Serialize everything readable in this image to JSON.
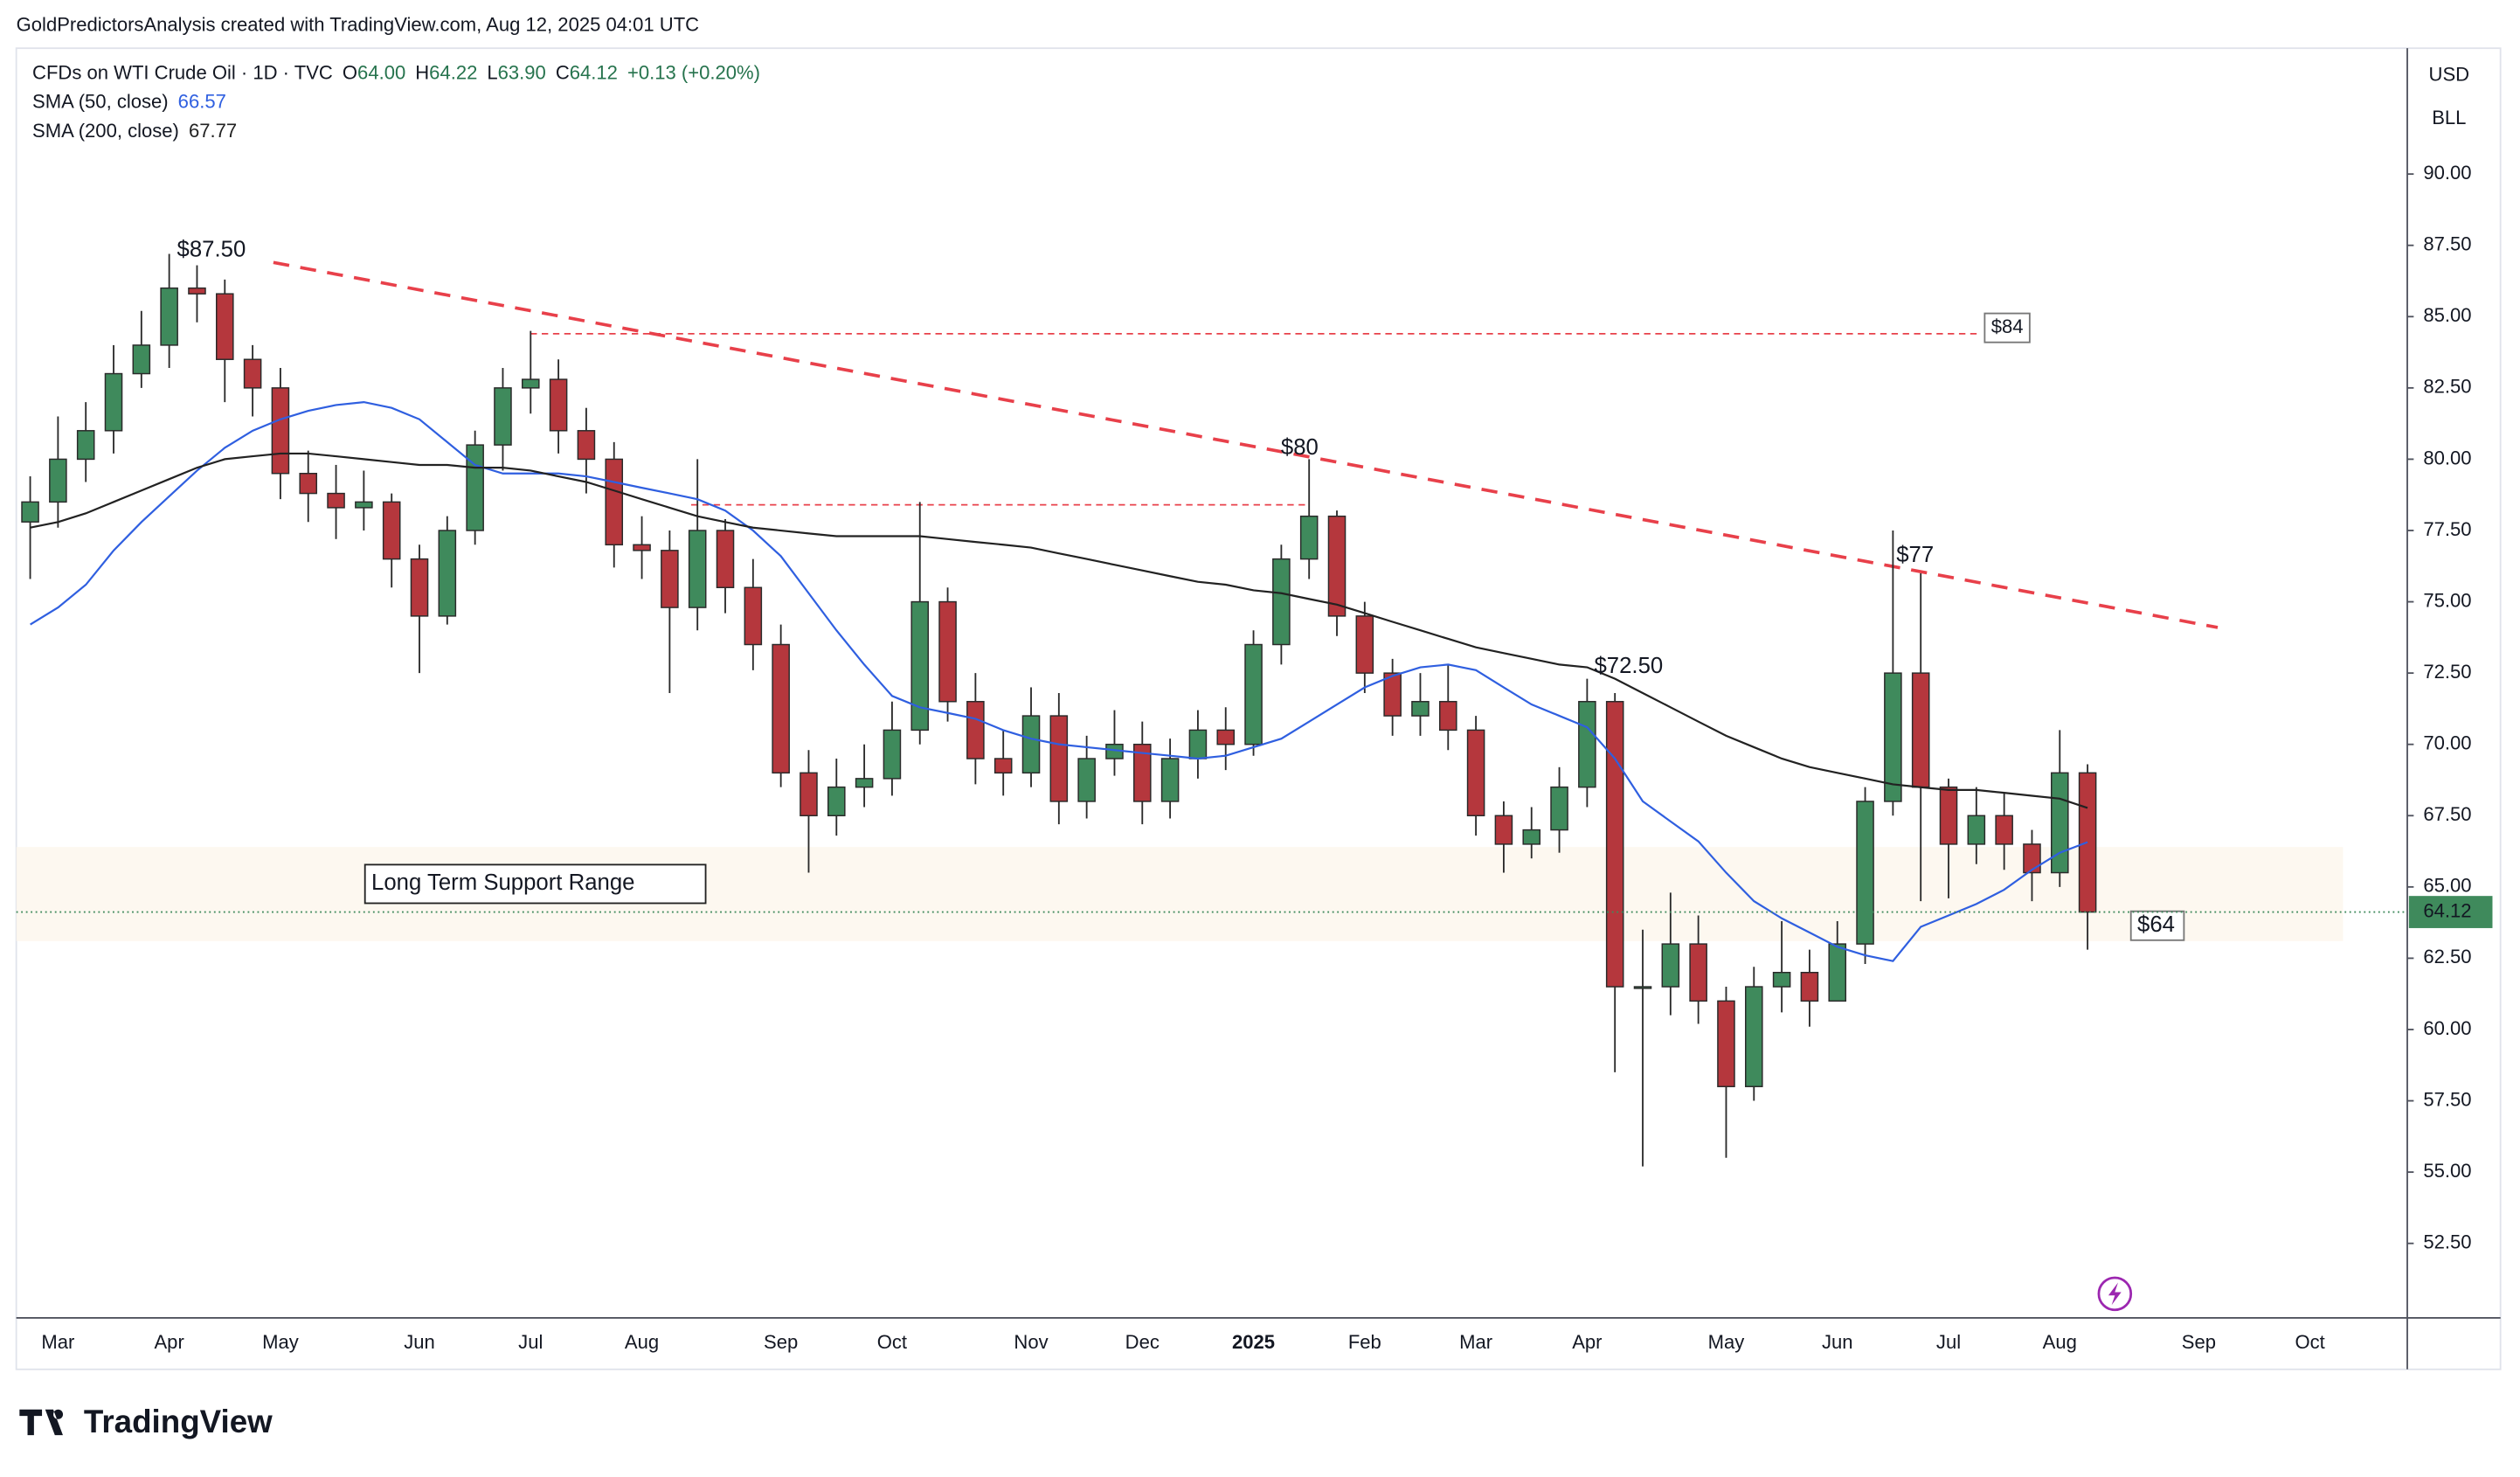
{
  "header": {
    "credit": "GoldPredictorsAnalysis created with TradingView.com, Aug 12, 2025 04:01 UTC",
    "symbol": "CFDs on WTI Crude Oil · 1D · TVC",
    "ohlc": [
      [
        "O",
        "64.00"
      ],
      [
        "H",
        "64.22"
      ],
      [
        "L",
        "63.90"
      ],
      [
        "C",
        "64.12"
      ]
    ],
    "change": "+0.13 (+0.20%)"
  },
  "currency": "USD",
  "unit": "BLL",
  "logo": "TradingView",
  "chart_data": {
    "type": "candlestick",
    "categories": [
      null,
      "Mar",
      null,
      null,
      null,
      "Apr",
      null,
      null,
      null,
      "May",
      null,
      null,
      null,
      null,
      "Jun",
      null,
      null,
      null,
      "Jul",
      null,
      null,
      null,
      "Aug",
      null,
      null,
      null,
      null,
      "Sep",
      null,
      null,
      null,
      "Oct",
      null,
      null,
      null,
      null,
      "Nov",
      null,
      null,
      null,
      "Dec",
      null,
      null,
      null,
      "2025",
      null,
      null,
      null,
      "Feb",
      null,
      null,
      null,
      "Mar",
      null,
      null,
      null,
      "Apr",
      null,
      null,
      null,
      null,
      "May",
      null,
      null,
      null,
      "Jun",
      null,
      null,
      null,
      "Jul",
      null,
      null,
      null,
      "Aug",
      null,
      null,
      null,
      null,
      "Sep",
      null,
      null,
      null,
      "Oct",
      null,
      null,
      null
    ],
    "open": [
      77.8,
      78.5,
      80.0,
      81.0,
      83.0,
      84.0,
      86.0,
      85.8,
      83.5,
      82.5,
      79.5,
      78.8,
      78.3,
      78.5,
      76.5,
      74.5,
      77.5,
      80.5,
      82.5,
      82.8,
      81.0,
      80.0,
      77.0,
      76.8,
      74.8,
      77.5,
      75.5,
      73.5,
      69.0,
      67.5,
      68.5,
      68.8,
      70.5,
      75.0,
      71.5,
      69.5,
      69.0,
      71.0,
      68.0,
      69.5,
      70.0,
      68.0,
      69.5,
      70.5,
      70.0,
      73.5,
      76.5,
      78.0,
      74.5,
      72.5,
      71.0,
      71.5,
      70.5,
      67.5,
      66.5,
      67.0,
      68.5,
      71.5,
      61.5,
      61.5,
      63.0,
      61.0,
      58.0,
      61.5,
      62.0,
      61.0,
      63.0,
      68.0,
      72.5,
      68.5,
      66.5,
      67.5,
      66.5,
      65.5,
      69.0,
      null,
      null,
      null,
      null,
      null,
      null,
      null,
      null,
      null,
      null,
      null
    ],
    "high": [
      79.4,
      81.5,
      82.0,
      84.0,
      85.2,
      87.2,
      86.8,
      86.3,
      84.0,
      83.2,
      80.3,
      79.8,
      79.6,
      78.8,
      77.0,
      78.0,
      81.0,
      83.2,
      84.5,
      83.5,
      81.8,
      80.6,
      78.0,
      77.5,
      80.0,
      77.9,
      76.5,
      74.2,
      69.8,
      69.5,
      70.0,
      71.5,
      78.5,
      75.5,
      72.5,
      70.5,
      72.0,
      71.8,
      70.3,
      71.2,
      70.8,
      70.2,
      71.2,
      71.3,
      74.0,
      77.0,
      80.0,
      78.2,
      75.0,
      73.0,
      72.5,
      72.8,
      71.0,
      68.0,
      67.8,
      69.2,
      72.3,
      71.8,
      63.5,
      64.8,
      64.0,
      61.5,
      62.2,
      63.8,
      62.8,
      63.8,
      68.5,
      77.5,
      76.0,
      68.8,
      68.5,
      68.3,
      67.0,
      70.5,
      69.3,
      null,
      null,
      null,
      null,
      null,
      null,
      null,
      null,
      null,
      null,
      null
    ],
    "low": [
      75.8,
      77.6,
      79.2,
      80.2,
      82.5,
      83.2,
      84.8,
      82.0,
      81.5,
      78.6,
      77.8,
      77.2,
      77.5,
      75.5,
      72.5,
      74.2,
      77.0,
      79.6,
      81.6,
      80.2,
      78.8,
      76.2,
      75.8,
      71.8,
      74.0,
      74.6,
      72.6,
      68.5,
      65.5,
      66.8,
      67.8,
      68.2,
      70.0,
      70.8,
      68.6,
      68.2,
      68.5,
      67.2,
      67.4,
      68.9,
      67.2,
      67.4,
      68.8,
      69.1,
      69.6,
      72.8,
      75.8,
      73.8,
      71.8,
      70.3,
      70.3,
      69.8,
      66.8,
      65.5,
      66.0,
      66.2,
      67.8,
      58.5,
      55.2,
      60.5,
      60.2,
      55.5,
      57.5,
      60.6,
      60.1,
      61.0,
      62.3,
      67.5,
      64.5,
      64.6,
      65.8,
      65.6,
      64.5,
      65.0,
      62.8,
      null,
      null,
      null,
      null,
      null,
      null,
      null,
      null,
      null,
      null,
      null
    ],
    "close": [
      78.5,
      80.0,
      81.0,
      83.0,
      84.0,
      86.0,
      85.8,
      83.5,
      82.5,
      79.5,
      78.8,
      78.3,
      78.5,
      76.5,
      74.5,
      77.5,
      80.5,
      82.5,
      82.8,
      81.0,
      80.0,
      77.0,
      76.8,
      74.8,
      77.5,
      75.5,
      73.5,
      69.0,
      67.5,
      68.5,
      68.8,
      70.5,
      75.0,
      71.5,
      69.5,
      69.0,
      71.0,
      68.0,
      69.5,
      70.0,
      68.0,
      69.5,
      70.5,
      70.0,
      73.5,
      76.5,
      78.0,
      74.5,
      72.5,
      71.0,
      71.5,
      70.5,
      67.5,
      66.5,
      67.0,
      68.5,
      71.5,
      61.5,
      61.5,
      63.0,
      61.0,
      58.0,
      61.5,
      62.0,
      61.0,
      63.0,
      68.0,
      72.5,
      68.5,
      66.5,
      67.5,
      66.5,
      65.5,
      69.0,
      64.12,
      null,
      null,
      null,
      null,
      null,
      null,
      null,
      null,
      null,
      null,
      null
    ],
    "up_color": "#3f8a5c",
    "down_color": "#b5373d",
    "series": [
      {
        "name": "SMA (50, close)",
        "color": "#2f5fe0",
        "values": [
          74.2,
          74.8,
          75.6,
          76.8,
          77.8,
          78.7,
          79.6,
          80.4,
          81.0,
          81.4,
          81.7,
          81.9,
          82.0,
          81.8,
          81.4,
          80.6,
          79.8,
          79.5,
          79.5,
          79.5,
          79.4,
          79.2,
          79.0,
          78.8,
          78.6,
          78.2,
          77.5,
          76.6,
          75.3,
          74.0,
          72.8,
          71.7,
          71.3,
          71.1,
          70.9,
          70.5,
          70.2,
          70.0,
          69.9,
          69.8,
          69.7,
          69.6,
          69.5,
          69.6,
          69.9,
          70.2,
          70.8,
          71.4,
          72.0,
          72.4,
          72.7,
          72.8,
          72.6,
          72.0,
          71.4,
          71.0,
          70.6,
          69.5,
          68.0,
          67.3,
          66.6,
          65.5,
          64.5,
          63.9,
          63.4,
          62.9,
          62.6,
          62.4,
          63.6,
          64.0,
          64.4,
          64.9,
          65.6,
          66.2,
          66.57,
          null,
          null,
          null,
          null,
          null,
          null,
          null,
          null,
          null,
          null,
          null
        ]
      },
      {
        "name": "SMA (200, close)",
        "color": "#222222",
        "values": [
          77.6,
          77.8,
          78.1,
          78.5,
          78.9,
          79.3,
          79.7,
          80.0,
          80.1,
          80.2,
          80.2,
          80.1,
          80.0,
          79.9,
          79.8,
          79.8,
          79.7,
          79.7,
          79.6,
          79.4,
          79.2,
          78.9,
          78.6,
          78.3,
          78.0,
          77.8,
          77.6,
          77.5,
          77.4,
          77.3,
          77.3,
          77.3,
          77.3,
          77.2,
          77.1,
          77.0,
          76.9,
          76.7,
          76.5,
          76.3,
          76.1,
          75.9,
          75.7,
          75.6,
          75.4,
          75.3,
          75.1,
          74.9,
          74.6,
          74.3,
          74.0,
          73.7,
          73.4,
          73.2,
          73.0,
          72.8,
          72.7,
          72.3,
          71.8,
          71.3,
          70.8,
          70.3,
          69.9,
          69.5,
          69.2,
          69.0,
          68.8,
          68.6,
          68.5,
          68.4,
          68.4,
          68.3,
          68.2,
          68.1,
          67.77,
          null,
          null,
          null,
          null,
          null,
          null,
          null,
          null,
          null,
          null,
          null
        ]
      }
    ],
    "ylim": [
      50,
      94.3
    ],
    "yticks": [
      {
        "value": 52.5,
        "label": "52.50"
      },
      {
        "value": 55,
        "label": "55.00"
      },
      {
        "value": 57.5,
        "label": "57.50"
      },
      {
        "value": 60,
        "label": "60.00"
      },
      {
        "value": 62.5,
        "label": "62.50"
      },
      {
        "value": 65,
        "label": "65.00"
      },
      {
        "value": 67.5,
        "label": "67.50"
      },
      {
        "value": 70,
        "label": "70.00"
      },
      {
        "value": 72.5,
        "label": "72.50"
      },
      {
        "value": 75,
        "label": "75.00"
      },
      {
        "value": 77.5,
        "label": "77.50"
      },
      {
        "value": 80,
        "label": "80.00"
      },
      {
        "value": 82.5,
        "label": "82.50"
      },
      {
        "value": 85,
        "label": "85.00"
      },
      {
        "value": 87.5,
        "label": "87.50"
      },
      {
        "value": 90,
        "label": "90.00"
      }
    ],
    "grid": false,
    "trendline": [
      86.9,
      74.1
    ],
    "levels": [
      84.4,
      78.4
    ],
    "support_range": [
      63.1,
      66.4
    ],
    "support_label": "Long Term Support Range",
    "annotations": [
      "$87.50",
      "$80",
      "$72.50",
      "$77"
    ],
    "level_tags": [
      "$84",
      "$64"
    ]
  }
}
